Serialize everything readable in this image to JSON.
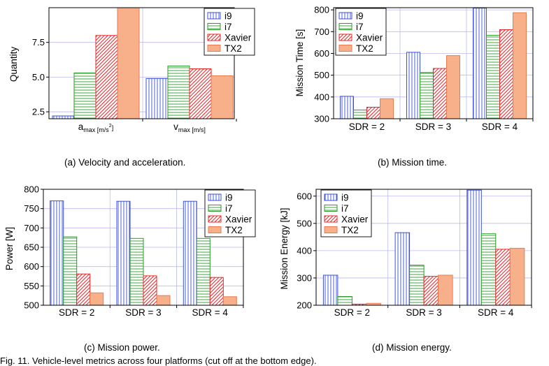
{
  "colors": {
    "i9": "#3b4fd8",
    "i7": "#2a9a2a",
    "Xavier": "#e8262a",
    "TX2": "#f7b08a",
    "tx2_edge": "#e97a50",
    "grid": "#b9b9f2",
    "axis": "#000000"
  },
  "legend_labels": [
    "i9",
    "i7",
    "Xavier",
    "TX2"
  ],
  "captions": {
    "a": "(a) Velocity and acceleration.",
    "b": "(b) Mission time.",
    "c": "(c) Mission power.",
    "d": "(d) Mission energy."
  },
  "bottom_text": "Fig. 11. Vehicle-level metrics across four platforms (cut off at the bottom edge).",
  "chart_data": [
    {
      "id": "a",
      "type": "bar",
      "ylabel": "Quantity",
      "ylim": [
        2.0,
        10.0
      ],
      "yticks": [
        2.5,
        5.0,
        7.5
      ],
      "ytick_labels": [
        "2.5",
        "5.0",
        "7.5"
      ],
      "categories": [
        {
          "main": "a",
          "sub": "max [m/s",
          "sup": "2",
          "tail": "]"
        },
        {
          "main": "v",
          "sub": "max [m/s]",
          "sup": "",
          "tail": ""
        }
      ],
      "series": [
        {
          "name": "i9",
          "values": [
            2.2,
            4.9
          ]
        },
        {
          "name": "i7",
          "values": [
            5.3,
            5.8
          ]
        },
        {
          "name": "Xavier",
          "values": [
            8.0,
            5.6
          ]
        },
        {
          "name": "TX2",
          "values": [
            10.0,
            5.1
          ]
        }
      ],
      "legend": "top-center",
      "grid": true
    },
    {
      "id": "b",
      "type": "bar",
      "ylabel": "Mission Time [s]",
      "ylim": [
        300,
        810
      ],
      "yticks": [
        300,
        400,
        500,
        600,
        700,
        800
      ],
      "ytick_labels": [
        "300",
        "400",
        "500",
        "600",
        "700",
        "800"
      ],
      "categories": [
        "SDR = 2",
        "SDR = 3",
        "SDR = 4"
      ],
      "series": [
        {
          "name": "i9",
          "values": [
            403,
            605,
            808
          ]
        },
        {
          "name": "i7",
          "values": [
            340,
            512,
            683
          ]
        },
        {
          "name": "Xavier",
          "values": [
            353,
            531,
            709
          ]
        },
        {
          "name": "TX2",
          "values": [
            392,
            590,
            787
          ]
        }
      ],
      "legend": "top-left",
      "grid": true
    },
    {
      "id": "c",
      "type": "bar",
      "ylabel": "Power [W]",
      "ylim": [
        500,
        800
      ],
      "yticks": [
        500,
        550,
        600,
        650,
        700,
        750,
        800
      ],
      "ytick_labels": [
        "500",
        "550",
        "600",
        "650",
        "700",
        "750",
        "800"
      ],
      "categories": [
        "SDR = 2",
        "SDR = 3",
        "SDR = 4"
      ],
      "series": [
        {
          "name": "i9",
          "values": [
            770,
            769,
            769
          ]
        },
        {
          "name": "i7",
          "values": [
            677,
            673,
            673
          ]
        },
        {
          "name": "Xavier",
          "values": [
            581,
            576,
            572
          ]
        },
        {
          "name": "TX2",
          "values": [
            532,
            525,
            522
          ]
        }
      ],
      "legend": "top-right",
      "grid": true
    },
    {
      "id": "d",
      "type": "bar",
      "ylabel": "Mission Energy [kJ]",
      "ylim": [
        200,
        625
      ],
      "yticks": [
        200,
        300,
        400,
        500,
        600
      ],
      "ytick_labels": [
        "200",
        "300",
        "400",
        "500",
        "600"
      ],
      "categories": [
        "SDR = 2",
        "SDR = 3",
        "SDR = 4"
      ],
      "series": [
        {
          "name": "i9",
          "values": [
            310,
            466,
            622
          ]
        },
        {
          "name": "i7",
          "values": [
            232,
            347,
            462
          ]
        },
        {
          "name": "Xavier",
          "values": [
            204,
            306,
            405
          ]
        },
        {
          "name": "TX2",
          "values": [
            207,
            310,
            409
          ]
        }
      ],
      "legend": "top-left",
      "grid": true
    }
  ]
}
